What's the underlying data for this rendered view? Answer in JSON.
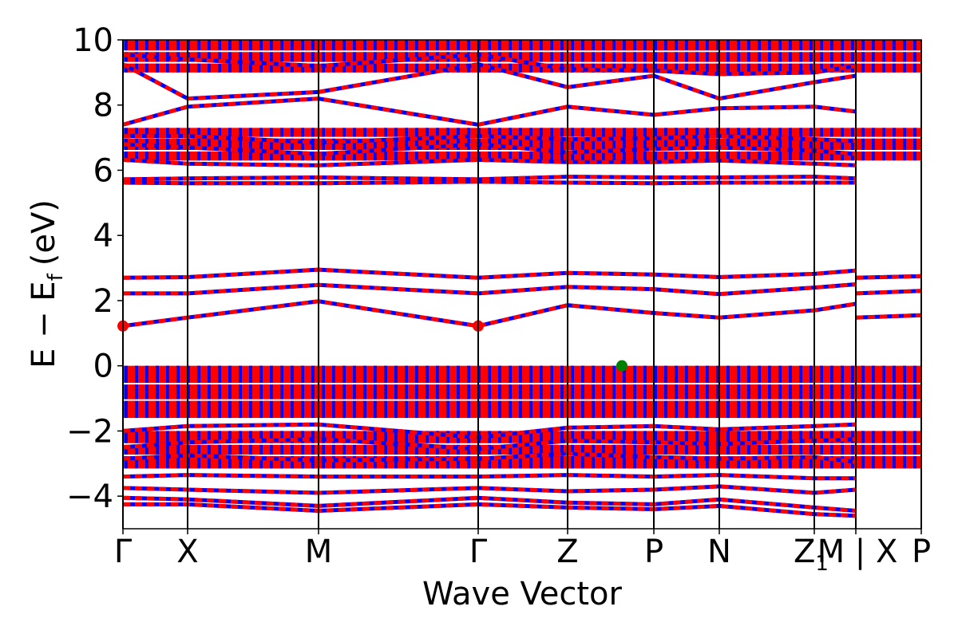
{
  "chart_data": {
    "type": "line",
    "xlabel": "Wave Vector",
    "ylabel": "E − E",
    "ylabel_subscript": "f",
    "ylabel_unit": "(eV)",
    "ylim": [
      -5,
      10
    ],
    "yticks": [
      -4,
      -2,
      0,
      2,
      4,
      6,
      8,
      10
    ],
    "ytick_labels": [
      "−4",
      "−2",
      "0",
      "2",
      "4",
      "6",
      "8",
      "10"
    ],
    "x_range": [
      0,
      1
    ],
    "kpoints": [
      {
        "label": "Γ",
        "x": 0.0
      },
      {
        "label": "X",
        "x": 0.081
      },
      {
        "label": "M",
        "x": 0.245
      },
      {
        "label": "Γ",
        "x": 0.445
      },
      {
        "label": "Z",
        "x": 0.557
      },
      {
        "label": "P",
        "x": 0.665
      },
      {
        "label": "N",
        "x": 0.747
      },
      {
        "label": "Z",
        "x": 0.866
      },
      {
        "label": "M",
        "x": 0.918
      },
      {
        "label": "X",
        "x": 0.918
      },
      {
        "label": "P",
        "x": 1.0
      }
    ],
    "kpath_text": {
      "z1": "Z",
      "z1_sub": "1",
      "break_label": "M | X"
    },
    "line_colors": {
      "dash_a": "#0000ff",
      "dash_b": "#ff0000"
    },
    "marker_colors": {
      "cbm": "#ff0000",
      "vbm": "#008000"
    },
    "markers": [
      {
        "type": "cbm",
        "x": 0.0,
        "y": 1.22
      },
      {
        "type": "cbm",
        "x": 0.445,
        "y": 1.22
      },
      {
        "type": "vbm",
        "x": 0.625,
        "y": 0.0
      }
    ],
    "series": [
      {
        "values": [
          [
            0,
            1.22
          ],
          [
            0.081,
            1.48
          ],
          [
            0.245,
            1.98
          ],
          [
            0.445,
            1.22
          ],
          [
            0.557,
            1.86
          ],
          [
            0.665,
            1.62
          ],
          [
            0.747,
            1.48
          ],
          [
            0.866,
            1.7
          ],
          [
            0.918,
            1.9
          ]
        ]
      },
      {
        "values": [
          [
            0.918,
            1.48
          ],
          [
            1.0,
            1.55
          ]
        ]
      },
      {
        "values": [
          [
            0,
            2.22
          ],
          [
            0.081,
            2.22
          ],
          [
            0.245,
            2.48
          ],
          [
            0.445,
            2.22
          ],
          [
            0.557,
            2.42
          ],
          [
            0.665,
            2.35
          ],
          [
            0.747,
            2.2
          ],
          [
            0.866,
            2.4
          ],
          [
            0.918,
            2.5
          ]
        ]
      },
      {
        "values": [
          [
            0.918,
            2.22
          ],
          [
            1.0,
            2.3
          ]
        ]
      },
      {
        "values": [
          [
            0,
            2.7
          ],
          [
            0.081,
            2.72
          ],
          [
            0.245,
            2.95
          ],
          [
            0.445,
            2.7
          ],
          [
            0.557,
            2.85
          ],
          [
            0.665,
            2.8
          ],
          [
            0.747,
            2.72
          ],
          [
            0.866,
            2.82
          ],
          [
            0.918,
            2.92
          ]
        ]
      },
      {
        "values": [
          [
            0.918,
            2.7
          ],
          [
            1.0,
            2.75
          ]
        ]
      },
      {
        "values": [
          [
            0,
            5.62
          ],
          [
            0.081,
            5.6
          ],
          [
            0.245,
            5.6
          ],
          [
            0.445,
            5.65
          ],
          [
            0.557,
            5.62
          ],
          [
            0.665,
            5.6
          ],
          [
            0.747,
            5.62
          ],
          [
            0.866,
            5.62
          ],
          [
            0.918,
            5.62
          ]
        ]
      },
      {
        "values": [
          [
            0,
            5.72
          ],
          [
            0.081,
            5.75
          ],
          [
            0.245,
            5.78
          ],
          [
            0.445,
            5.72
          ],
          [
            0.557,
            5.8
          ],
          [
            0.665,
            5.78
          ],
          [
            0.747,
            5.78
          ],
          [
            0.866,
            5.8
          ],
          [
            0.918,
            5.75
          ]
        ]
      },
      {
        "values": [
          [
            0,
            6.32
          ],
          [
            0.081,
            6.2
          ],
          [
            0.245,
            6.15
          ],
          [
            0.445,
            6.32
          ],
          [
            0.557,
            6.25
          ],
          [
            0.665,
            6.25
          ],
          [
            0.747,
            6.3
          ],
          [
            0.866,
            6.2
          ],
          [
            0.918,
            6.15
          ]
        ]
      },
      {
        "values": [
          [
            0,
            6.8
          ],
          [
            0.081,
            6.7
          ],
          [
            0.245,
            6.5
          ],
          [
            0.445,
            6.8
          ],
          [
            0.557,
            6.55
          ],
          [
            0.665,
            6.65
          ],
          [
            0.747,
            6.7
          ],
          [
            0.866,
            6.6
          ],
          [
            0.918,
            6.5
          ]
        ]
      },
      {
        "values": [
          [
            0,
            7.05
          ],
          [
            0.081,
            7.05
          ],
          [
            0.245,
            6.85
          ],
          [
            0.445,
            7.05
          ],
          [
            0.557,
            6.95
          ],
          [
            0.665,
            6.98
          ],
          [
            0.747,
            7.05
          ],
          [
            0.866,
            6.95
          ],
          [
            0.918,
            6.9
          ]
        ]
      },
      {
        "values": [
          [
            0,
            7.4
          ],
          [
            0.081,
            7.95
          ],
          [
            0.245,
            8.2
          ],
          [
            0.445,
            7.4
          ],
          [
            0.557,
            7.95
          ],
          [
            0.665,
            7.7
          ],
          [
            0.747,
            7.9
          ],
          [
            0.866,
            7.95
          ],
          [
            0.918,
            7.8
          ]
        ]
      },
      {
        "values": [
          [
            0,
            9.25
          ],
          [
            0.081,
            8.2
          ],
          [
            0.245,
            8.4
          ],
          [
            0.445,
            9.25
          ],
          [
            0.557,
            8.55
          ],
          [
            0.665,
            8.9
          ],
          [
            0.747,
            8.2
          ],
          [
            0.866,
            8.7
          ],
          [
            0.918,
            8.9
          ]
        ]
      },
      {
        "values": [
          [
            0,
            9.55
          ],
          [
            0.081,
            9.4
          ],
          [
            0.245,
            9.2
          ],
          [
            0.445,
            9.55
          ],
          [
            0.557,
            9.1
          ],
          [
            0.665,
            9.05
          ],
          [
            0.747,
            8.95
          ],
          [
            0.866,
            9.0
          ],
          [
            0.918,
            9.2
          ]
        ]
      },
      {
        "values": [
          [
            0,
            -2.0
          ],
          [
            0.081,
            -1.85
          ],
          [
            0.245,
            -1.8
          ],
          [
            0.445,
            -2.2
          ],
          [
            0.557,
            -1.9
          ],
          [
            0.665,
            -1.85
          ],
          [
            0.747,
            -1.95
          ],
          [
            0.866,
            -1.85
          ],
          [
            0.918,
            -1.8
          ]
        ]
      },
      {
        "values": [
          [
            0,
            -2.5
          ],
          [
            0.081,
            -2.35
          ],
          [
            0.245,
            -2.25
          ],
          [
            0.445,
            -2.55
          ],
          [
            0.557,
            -2.3
          ],
          [
            0.665,
            -2.35
          ],
          [
            0.747,
            -2.4
          ],
          [
            0.866,
            -2.3
          ],
          [
            0.918,
            -2.25
          ]
        ]
      },
      {
        "values": [
          [
            0,
            -2.85
          ],
          [
            0.081,
            -2.75
          ],
          [
            0.245,
            -2.9
          ],
          [
            0.445,
            -2.85
          ],
          [
            0.557,
            -2.7
          ],
          [
            0.665,
            -2.8
          ],
          [
            0.747,
            -2.85
          ],
          [
            0.866,
            -2.8
          ],
          [
            0.918,
            -2.95
          ]
        ]
      },
      {
        "values": [
          [
            0,
            -3.4
          ],
          [
            0.081,
            -3.35
          ],
          [
            0.245,
            -3.4
          ],
          [
            0.445,
            -3.4
          ],
          [
            0.557,
            -3.35
          ],
          [
            0.665,
            -3.4
          ],
          [
            0.747,
            -3.35
          ],
          [
            0.866,
            -3.45
          ],
          [
            0.918,
            -3.45
          ]
        ]
      },
      {
        "values": [
          [
            0,
            -3.75
          ],
          [
            0.081,
            -3.8
          ],
          [
            0.245,
            -3.9
          ],
          [
            0.445,
            -3.75
          ],
          [
            0.557,
            -3.85
          ],
          [
            0.665,
            -3.8
          ],
          [
            0.747,
            -3.7
          ],
          [
            0.866,
            -3.9
          ],
          [
            0.918,
            -3.8
          ]
        ]
      },
      {
        "values": [
          [
            0,
            -4.05
          ],
          [
            0.081,
            -4.1
          ],
          [
            0.245,
            -4.3
          ],
          [
            0.445,
            -4.05
          ],
          [
            0.557,
            -4.2
          ],
          [
            0.665,
            -4.25
          ],
          [
            0.747,
            -4.1
          ],
          [
            0.866,
            -4.35
          ],
          [
            0.918,
            -4.45
          ]
        ]
      },
      {
        "values": [
          [
            0,
            -4.25
          ],
          [
            0.081,
            -4.25
          ],
          [
            0.245,
            -4.45
          ],
          [
            0.445,
            -4.25
          ],
          [
            0.557,
            -4.35
          ],
          [
            0.665,
            -4.4
          ],
          [
            0.747,
            -4.3
          ],
          [
            0.866,
            -4.55
          ],
          [
            0.918,
            -4.6
          ]
        ]
      }
    ]
  }
}
